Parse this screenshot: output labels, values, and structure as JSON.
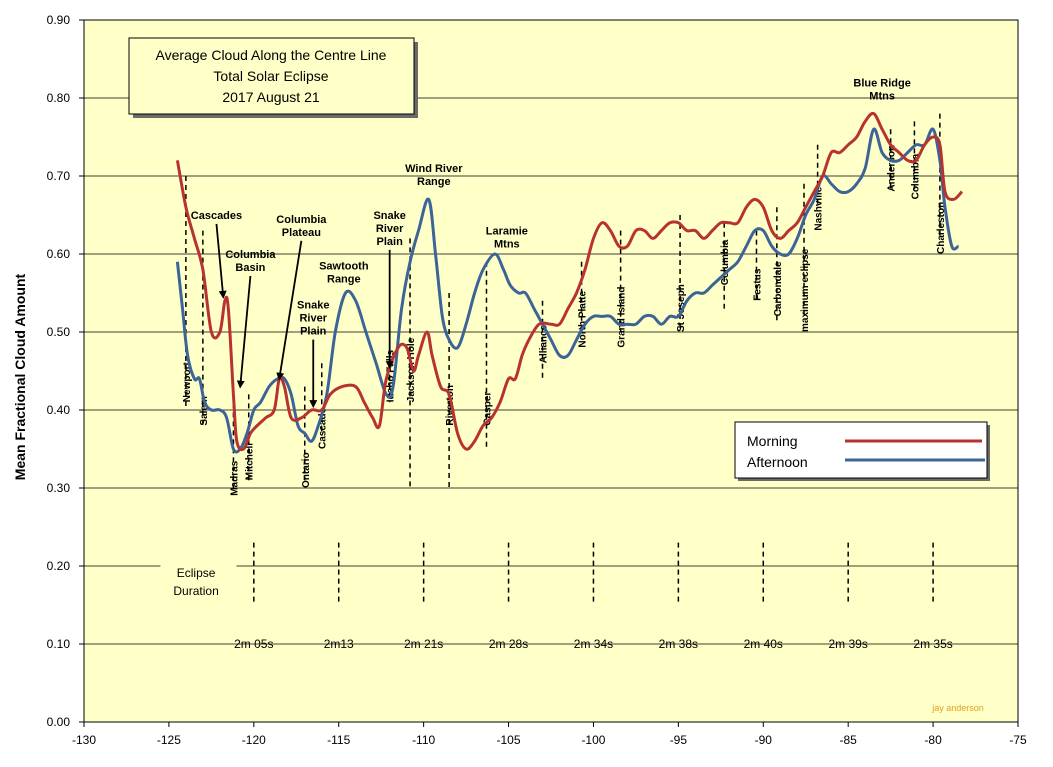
{
  "chart_data": {
    "type": "line",
    "title": "Average Cloud Along the Centre Line",
    "subtitle_lines": [
      "Total Solar Eclipse",
      "2017 August 21"
    ],
    "ylabel": "Mean Fractional Cloud Amount",
    "xlabel": "",
    "xlim": [
      -130,
      -75
    ],
    "ylim": [
      0,
      0.9
    ],
    "x_ticks": [
      "-130",
      "-125",
      "-120",
      "-115",
      "-110",
      "-105",
      "-100",
      "-95",
      "-90",
      "-85",
      "-80",
      "-75"
    ],
    "y_ticks": [
      "0.00",
      "0.10",
      "0.20",
      "0.30",
      "0.40",
      "0.50",
      "0.60",
      "0.70",
      "0.80",
      "0.90"
    ],
    "grid": "horizontal",
    "background": "#ffffc8",
    "legend_position": "right",
    "credit": "jay anderson",
    "series": [
      {
        "name": "Morning",
        "color": "#b83232",
        "points": [
          [
            -124.5,
            0.72
          ],
          [
            -124.0,
            0.66
          ],
          [
            -123.5,
            0.62
          ],
          [
            -123.0,
            0.58
          ],
          [
            -122.5,
            0.5
          ],
          [
            -122.0,
            0.5
          ],
          [
            -121.7,
            0.54
          ],
          [
            -121.5,
            0.53
          ],
          [
            -121.2,
            0.42
          ],
          [
            -121.0,
            0.36
          ],
          [
            -120.6,
            0.35
          ],
          [
            -120.2,
            0.37
          ],
          [
            -119.8,
            0.38
          ],
          [
            -119.3,
            0.39
          ],
          [
            -118.8,
            0.4
          ],
          [
            -118.5,
            0.44
          ],
          [
            -118.2,
            0.43
          ],
          [
            -117.8,
            0.39
          ],
          [
            -117.2,
            0.39
          ],
          [
            -116.6,
            0.4
          ],
          [
            -116.0,
            0.4
          ],
          [
            -115.5,
            0.42
          ],
          [
            -114.8,
            0.43
          ],
          [
            -114.0,
            0.43
          ],
          [
            -113.5,
            0.41
          ],
          [
            -113.0,
            0.39
          ],
          [
            -112.6,
            0.38
          ],
          [
            -112.2,
            0.44
          ],
          [
            -111.5,
            0.48
          ],
          [
            -111.0,
            0.48
          ],
          [
            -110.6,
            0.45
          ],
          [
            -110.3,
            0.47
          ],
          [
            -109.8,
            0.5
          ],
          [
            -109.5,
            0.47
          ],
          [
            -109.0,
            0.43
          ],
          [
            -108.5,
            0.42
          ],
          [
            -108.0,
            0.37
          ],
          [
            -107.5,
            0.35
          ],
          [
            -107.0,
            0.36
          ],
          [
            -106.5,
            0.38
          ],
          [
            -106.0,
            0.39
          ],
          [
            -105.5,
            0.41
          ],
          [
            -105.0,
            0.44
          ],
          [
            -104.6,
            0.44
          ],
          [
            -104.2,
            0.47
          ],
          [
            -103.8,
            0.49
          ],
          [
            -103.2,
            0.51
          ],
          [
            -102.5,
            0.51
          ],
          [
            -102.0,
            0.51
          ],
          [
            -101.5,
            0.53
          ],
          [
            -101.0,
            0.55
          ],
          [
            -100.5,
            0.58
          ],
          [
            -100.0,
            0.62
          ],
          [
            -99.5,
            0.64
          ],
          [
            -99.0,
            0.63
          ],
          [
            -98.5,
            0.61
          ],
          [
            -98.0,
            0.61
          ],
          [
            -97.5,
            0.63
          ],
          [
            -97.0,
            0.63
          ],
          [
            -96.5,
            0.62
          ],
          [
            -96.0,
            0.63
          ],
          [
            -95.5,
            0.64
          ],
          [
            -95.0,
            0.64
          ],
          [
            -94.5,
            0.63
          ],
          [
            -94.0,
            0.63
          ],
          [
            -93.5,
            0.62
          ],
          [
            -93.0,
            0.63
          ],
          [
            -92.5,
            0.64
          ],
          [
            -92.0,
            0.64
          ],
          [
            -91.5,
            0.64
          ],
          [
            -91.0,
            0.66
          ],
          [
            -90.5,
            0.67
          ],
          [
            -90.0,
            0.66
          ],
          [
            -89.5,
            0.63
          ],
          [
            -89.0,
            0.62
          ],
          [
            -88.5,
            0.63
          ],
          [
            -88.0,
            0.64
          ],
          [
            -87.5,
            0.66
          ],
          [
            -87.0,
            0.68
          ],
          [
            -86.5,
            0.7
          ],
          [
            -86.0,
            0.73
          ],
          [
            -85.5,
            0.73
          ],
          [
            -85.0,
            0.74
          ],
          [
            -84.5,
            0.75
          ],
          [
            -84.0,
            0.77
          ],
          [
            -83.5,
            0.78
          ],
          [
            -83.0,
            0.76
          ],
          [
            -82.5,
            0.74
          ],
          [
            -82.0,
            0.73
          ],
          [
            -81.5,
            0.72
          ],
          [
            -81.0,
            0.72
          ],
          [
            -80.5,
            0.74
          ],
          [
            -80.0,
            0.75
          ],
          [
            -79.6,
            0.74
          ],
          [
            -79.3,
            0.68
          ],
          [
            -78.8,
            0.67
          ],
          [
            -78.3,
            0.68
          ]
        ]
      },
      {
        "name": "Afternoon",
        "color": "#3c6496",
        "points": [
          [
            -124.5,
            0.59
          ],
          [
            -124.2,
            0.53
          ],
          [
            -123.9,
            0.47
          ],
          [
            -123.5,
            0.44
          ],
          [
            -123.2,
            0.44
          ],
          [
            -122.9,
            0.41
          ],
          [
            -122.5,
            0.4
          ],
          [
            -122.0,
            0.4
          ],
          [
            -121.6,
            0.39
          ],
          [
            -121.2,
            0.35
          ],
          [
            -120.8,
            0.35
          ],
          [
            -120.4,
            0.37
          ],
          [
            -120.0,
            0.4
          ],
          [
            -119.6,
            0.41
          ],
          [
            -119.1,
            0.43
          ],
          [
            -118.6,
            0.44
          ],
          [
            -118.2,
            0.44
          ],
          [
            -117.8,
            0.42
          ],
          [
            -117.4,
            0.38
          ],
          [
            -117.0,
            0.37
          ],
          [
            -116.6,
            0.36
          ],
          [
            -116.2,
            0.38
          ],
          [
            -115.7,
            0.42
          ],
          [
            -115.2,
            0.5
          ],
          [
            -114.6,
            0.55
          ],
          [
            -114.0,
            0.54
          ],
          [
            -113.4,
            0.5
          ],
          [
            -112.8,
            0.46
          ],
          [
            -112.2,
            0.42
          ],
          [
            -111.8,
            0.43
          ],
          [
            -111.3,
            0.53
          ],
          [
            -110.8,
            0.59
          ],
          [
            -110.3,
            0.63
          ],
          [
            -109.7,
            0.67
          ],
          [
            -109.3,
            0.6
          ],
          [
            -108.9,
            0.52
          ],
          [
            -108.5,
            0.49
          ],
          [
            -108.0,
            0.48
          ],
          [
            -107.5,
            0.51
          ],
          [
            -107.0,
            0.55
          ],
          [
            -106.5,
            0.58
          ],
          [
            -105.8,
            0.6
          ],
          [
            -105.3,
            0.58
          ],
          [
            -104.9,
            0.56
          ],
          [
            -104.4,
            0.55
          ],
          [
            -104.0,
            0.55
          ],
          [
            -103.5,
            0.53
          ],
          [
            -103.0,
            0.51
          ],
          [
            -102.5,
            0.49
          ],
          [
            -102.0,
            0.47
          ],
          [
            -101.5,
            0.47
          ],
          [
            -101.0,
            0.49
          ],
          [
            -100.5,
            0.51
          ],
          [
            -100.0,
            0.52
          ],
          [
            -99.5,
            0.52
          ],
          [
            -99.0,
            0.52
          ],
          [
            -98.5,
            0.51
          ],
          [
            -98.0,
            0.51
          ],
          [
            -97.5,
            0.51
          ],
          [
            -97.0,
            0.52
          ],
          [
            -96.5,
            0.52
          ],
          [
            -96.0,
            0.51
          ],
          [
            -95.5,
            0.52
          ],
          [
            -95.0,
            0.52
          ],
          [
            -94.5,
            0.54
          ],
          [
            -94.0,
            0.55
          ],
          [
            -93.5,
            0.55
          ],
          [
            -93.0,
            0.56
          ],
          [
            -92.5,
            0.57
          ],
          [
            -92.0,
            0.58
          ],
          [
            -91.5,
            0.59
          ],
          [
            -91.0,
            0.61
          ],
          [
            -90.5,
            0.63
          ],
          [
            -90.0,
            0.63
          ],
          [
            -89.5,
            0.61
          ],
          [
            -89.0,
            0.6
          ],
          [
            -88.5,
            0.6
          ],
          [
            -88.0,
            0.62
          ],
          [
            -87.5,
            0.65
          ],
          [
            -87.0,
            0.67
          ],
          [
            -86.5,
            0.7
          ],
          [
            -86.0,
            0.69
          ],
          [
            -85.5,
            0.68
          ],
          [
            -85.0,
            0.68
          ],
          [
            -84.5,
            0.69
          ],
          [
            -84.0,
            0.71
          ],
          [
            -83.5,
            0.76
          ],
          [
            -83.0,
            0.73
          ],
          [
            -82.5,
            0.72
          ],
          [
            -82.0,
            0.72
          ],
          [
            -81.5,
            0.73
          ],
          [
            -81.0,
            0.74
          ],
          [
            -80.5,
            0.74
          ],
          [
            -80.0,
            0.76
          ],
          [
            -79.6,
            0.72
          ],
          [
            -79.3,
            0.66
          ],
          [
            -78.9,
            0.61
          ],
          [
            -78.5,
            0.61
          ]
        ]
      }
    ],
    "region_labels": [
      {
        "lines": [
          "Cascades"
        ],
        "x": -122.2,
        "y": 0.645,
        "arrow_to": [
          -121.8,
          0.545
        ]
      },
      {
        "lines": [
          "Columbia",
          "Basin"
        ],
        "x": -120.2,
        "y": 0.595,
        "arrow_to": [
          -120.8,
          0.43
        ]
      },
      {
        "lines": [
          "Columbia",
          "Plateau"
        ],
        "x": -117.2,
        "y": 0.64,
        "arrow_to": [
          -118.5,
          0.44
        ]
      },
      {
        "lines": [
          "Snake",
          "River",
          "Plain"
        ],
        "x": -116.5,
        "y": 0.53,
        "arrow_to": [
          -116.5,
          0.405
        ]
      },
      {
        "lines": [
          "Sawtooth",
          "Range"
        ],
        "x": -114.7,
        "y": 0.58
      },
      {
        "lines": [
          "Snake",
          "River",
          "Plain"
        ],
        "x": -112.0,
        "y": 0.645,
        "arrow_to": [
          -112.0,
          0.455
        ]
      },
      {
        "lines": [
          "Wind River",
          "Range"
        ],
        "x": -109.4,
        "y": 0.705
      },
      {
        "lines": [
          "Laramie",
          "Mtns"
        ],
        "x": -105.1,
        "y": 0.625
      },
      {
        "lines": [
          "Blue Ridge",
          "Mtns"
        ],
        "x": -83.0,
        "y": 0.815
      }
    ],
    "locations": [
      {
        "name": "Newport",
        "x": -124.0,
        "top": 0.7,
        "bottom": 0.4,
        "label_y": 0.41
      },
      {
        "name": "Salem",
        "x": -123.0,
        "top": 0.63,
        "bottom": 0.38,
        "label_y": 0.38
      },
      {
        "name": "Madras",
        "x": -121.2,
        "top": 0.42,
        "bottom": 0.3,
        "label_y": 0.29
      },
      {
        "name": "Mitchell",
        "x": -120.3,
        "top": 0.42,
        "bottom": 0.31,
        "label_y": 0.31
      },
      {
        "name": "Ontario",
        "x": -117.0,
        "top": 0.43,
        "bottom": 0.31,
        "label_y": 0.3
      },
      {
        "name": "Cascade",
        "x": -116.0,
        "top": 0.46,
        "bottom": 0.37,
        "label_y": 0.35
      },
      {
        "name": "Idaho Falls",
        "x": -112.0,
        "top": 0.48,
        "bottom": 0.41,
        "label_y": 0.41
      },
      {
        "name": "Jackson Hole",
        "x": -110.8,
        "top": 0.62,
        "bottom": 0.3,
        "label_y": 0.41
      },
      {
        "name": "Riverton",
        "x": -108.5,
        "top": 0.55,
        "bottom": 0.3,
        "label_y": 0.38
      },
      {
        "name": "Casper",
        "x": -106.3,
        "top": 0.59,
        "bottom": 0.35,
        "label_y": 0.38
      },
      {
        "name": "Alliance",
        "x": -103.0,
        "top": 0.54,
        "bottom": 0.44,
        "label_y": 0.46
      },
      {
        "name": "North Platte",
        "x": -100.7,
        "top": 0.59,
        "bottom": 0.5,
        "label_y": 0.48
      },
      {
        "name": "Grand Island",
        "x": -98.4,
        "top": 0.63,
        "bottom": 0.5,
        "label_y": 0.48
      },
      {
        "name": "St Joseph",
        "x": -94.9,
        "top": 0.65,
        "bottom": 0.5,
        "label_y": 0.5
      },
      {
        "name": "Columbia",
        "x": -92.3,
        "top": 0.64,
        "bottom": 0.53,
        "label_y": 0.56
      },
      {
        "name": "Festus",
        "x": -90.4,
        "top": 0.63,
        "bottom": 0.54,
        "label_y": 0.54
      },
      {
        "name": "Carbondale",
        "x": -89.2,
        "top": 0.66,
        "bottom": 0.51,
        "label_y": 0.52
      },
      {
        "name": "maximum eclipse",
        "x": -87.6,
        "top": 0.69,
        "bottom": 0.52,
        "label_y": 0.5
      },
      {
        "name": "Nashville",
        "x": -86.8,
        "top": 0.74,
        "bottom": 0.66,
        "label_y": 0.63
      },
      {
        "name": "Anderson",
        "x": -82.5,
        "top": 0.76,
        "bottom": 0.68,
        "label_y": 0.68
      },
      {
        "name": "Columbia",
        "x": -81.1,
        "top": 0.77,
        "bottom": 0.68,
        "label_y": 0.67
      },
      {
        "name": "Charleston",
        "x": -79.6,
        "top": 0.78,
        "bottom": 0.62,
        "label_y": 0.6
      }
    ],
    "eclipse_duration": {
      "label_lines": [
        "Eclipse",
        "Duration"
      ],
      "x": [
        -120,
        -115,
        -110,
        -105,
        -100,
        -95,
        -90,
        -85,
        -80
      ],
      "values": [
        "2m 05s",
        "2m13",
        "2m 21s",
        "2m 28s",
        "2m 34s",
        "2m 38s",
        "2m 40s",
        "2m 39s",
        "2m 35s"
      ]
    }
  }
}
